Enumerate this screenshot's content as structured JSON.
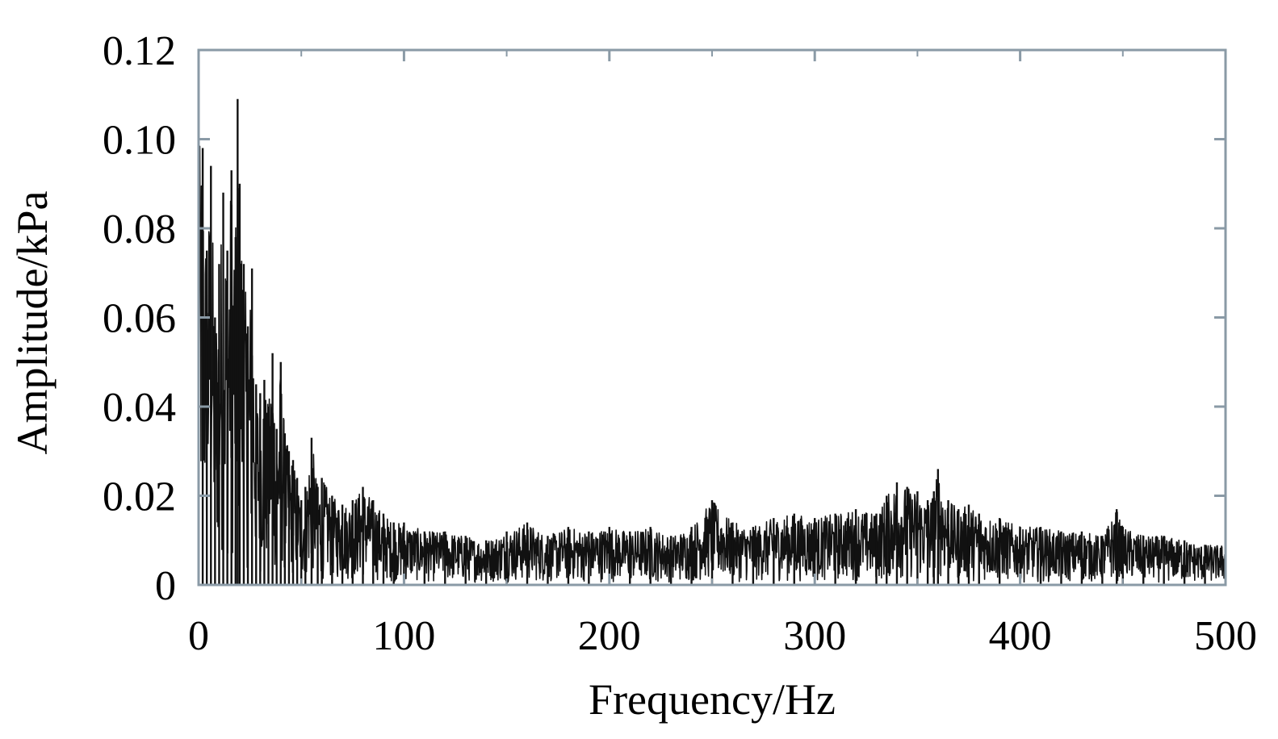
{
  "chart_data": {
    "type": "line",
    "title": "",
    "xlabel": "Frequency/Hz",
    "ylabel": "Amplitude/kPa",
    "xlim": [
      0,
      500
    ],
    "ylim": [
      0,
      0.12
    ],
    "x_ticks": [
      "0",
      "100",
      "200",
      "300",
      "400",
      "500"
    ],
    "y_ticks": [
      "0",
      "0.02",
      "0.04",
      "0.06",
      "0.08",
      "0.10",
      "0.12"
    ],
    "grid": false,
    "legend": "none",
    "line_color": "#111111",
    "frame_color": "#8a9aa6",
    "series": [
      {
        "x": [
          0,
          2,
          4,
          6,
          8,
          10,
          12,
          14,
          16,
          18,
          19,
          20,
          22,
          24,
          26,
          28,
          30,
          32,
          34,
          36,
          38,
          40,
          42,
          44,
          46,
          48,
          50,
          52,
          55,
          58,
          60,
          65,
          70,
          75,
          80,
          85,
          90,
          95,
          100,
          110,
          120,
          130,
          140,
          150,
          160,
          170,
          180,
          190,
          200,
          210,
          220,
          230,
          240,
          250,
          260,
          270,
          280,
          290,
          300,
          310,
          320,
          330,
          335,
          340,
          345,
          350,
          355,
          358,
          360,
          365,
          370,
          375,
          380,
          390,
          400,
          410,
          420,
          430,
          440,
          447,
          450,
          460,
          470,
          480,
          490,
          500
        ],
        "values": [
          0.099,
          0.098,
          0.075,
          0.094,
          0.06,
          0.072,
          0.088,
          0.075,
          0.093,
          0.078,
          0.109,
          0.09,
          0.072,
          0.058,
          0.071,
          0.045,
          0.043,
          0.046,
          0.04,
          0.052,
          0.035,
          0.05,
          0.034,
          0.03,
          0.028,
          0.024,
          0.019,
          0.022,
          0.033,
          0.022,
          0.024,
          0.02,
          0.018,
          0.019,
          0.022,
          0.019,
          0.016,
          0.014,
          0.014,
          0.012,
          0.012,
          0.011,
          0.01,
          0.012,
          0.014,
          0.011,
          0.013,
          0.012,
          0.013,
          0.012,
          0.013,
          0.011,
          0.013,
          0.019,
          0.014,
          0.013,
          0.015,
          0.016,
          0.015,
          0.016,
          0.017,
          0.016,
          0.02,
          0.023,
          0.022,
          0.021,
          0.019,
          0.021,
          0.026,
          0.019,
          0.017,
          0.018,
          0.016,
          0.015,
          0.013,
          0.013,
          0.012,
          0.012,
          0.011,
          0.017,
          0.013,
          0.011,
          0.011,
          0.01,
          0.009,
          0.009
        ]
      }
    ]
  }
}
